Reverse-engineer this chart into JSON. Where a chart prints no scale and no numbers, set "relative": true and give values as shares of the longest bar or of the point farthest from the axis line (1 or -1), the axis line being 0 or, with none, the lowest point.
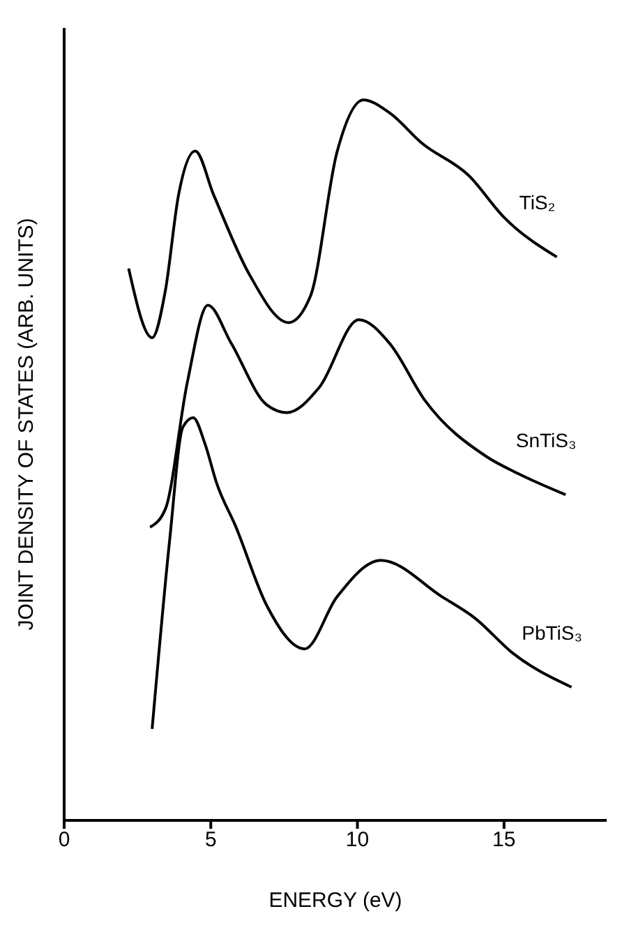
{
  "chart_data": {
    "type": "line",
    "xlabel": "ENERGY (eV)",
    "ylabel": "JOINT DENSITY OF STATES (ARB. UNITS)",
    "relative": true,
    "xlim": [
      0,
      18.5
    ],
    "xticks": [
      0,
      5,
      10,
      15
    ],
    "legend": false,
    "grid": false,
    "marker": "none",
    "line_style": "solid",
    "series": [
      {
        "name": "TiS₂",
        "color": "#000000",
        "x": [
          2.2,
          3.0,
          3.45,
          3.9,
          4.47,
          5.1,
          6.3,
          7.65,
          8.4,
          9.3,
          10.2,
          11.1,
          12.2,
          13.8,
          15.0,
          16.8
        ],
        "values": [
          0.766,
          0.67,
          0.735,
          0.868,
          0.929,
          0.868,
          0.759,
          0.691,
          0.728,
          0.927,
          1.0,
          0.982,
          0.94,
          0.895,
          0.837,
          0.782
        ]
      },
      {
        "name": "SnTiS₃",
        "color": "#000000",
        "x": [
          2.93,
          3.45,
          4.2,
          4.9,
          5.7,
          6.9,
          7.6,
          8.7,
          10.05,
          11.1,
          12.3,
          14.4,
          15.5,
          17.1
        ],
        "values": [
          0.407,
          0.432,
          0.608,
          0.715,
          0.662,
          0.577,
          0.566,
          0.601,
          0.695,
          0.662,
          0.583,
          0.505,
          0.481,
          0.452
        ]
      },
      {
        "name": "PbTiS₃",
        "color": "#000000",
        "x": [
          3.0,
          3.6,
          4.05,
          4.4,
          4.8,
          5.2,
          5.85,
          6.9,
          8.2,
          9.3,
          10.8,
          12.9,
          14.0,
          15.3,
          17.3
        ],
        "values": [
          0.127,
          0.39,
          0.546,
          0.559,
          0.523,
          0.468,
          0.408,
          0.299,
          0.238,
          0.31,
          0.361,
          0.31,
          0.281,
          0.232,
          0.185
        ]
      }
    ]
  }
}
